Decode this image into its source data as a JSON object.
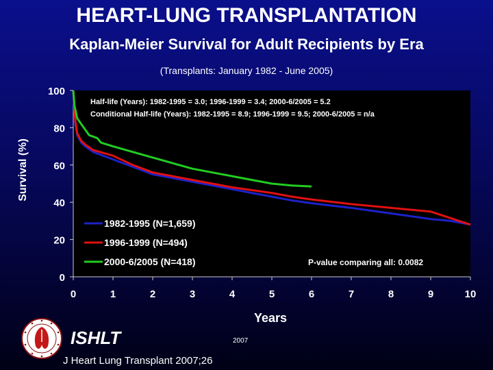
{
  "header": {
    "title": "HEART-LUNG TRANSPLANTATION",
    "subtitle": "Kaplan-Meier Survival for Adult Recipients by Era",
    "note": "(Transplants: January 1982 - June 2005)"
  },
  "footer": {
    "org": "ISHLT",
    "year": "2007",
    "citation": "J Heart Lung Transplant 2007;26"
  },
  "colors": {
    "background": "#06086e",
    "plot_area": "#000000",
    "series_1982_1995": "#1d22c8",
    "series_1996_1999": "#e01010",
    "series_2000_2005": "#22cc22",
    "text": "#ffffff"
  },
  "chart_data": {
    "type": "line",
    "xlabel": "Years",
    "ylabel": "Survival (%)",
    "xlim": [
      0,
      10
    ],
    "ylim": [
      0,
      100
    ],
    "xticks": [
      "0",
      "1",
      "2",
      "3",
      "4",
      "5",
      "6",
      "7",
      "8",
      "9",
      "10"
    ],
    "yticks": [
      "0",
      "20",
      "40",
      "60",
      "80",
      "100"
    ],
    "annotations": [
      "Half-life (Years): 1982-1995 = 3.0; 1996-1999 = 3.4; 2000-6/2005 = 5.2",
      "Conditional Half-life (Years): 1982-1995 = 8.9; 1996-1999 = 9.5; 2000-6/2005 = n/a",
      "P-value comparing all: 0.0082"
    ],
    "legend_position": "bottom-left",
    "series": [
      {
        "name": "1982-1995 (N=1,659)",
        "color": "#1d22c8",
        "x": [
          0,
          0.05,
          0.1,
          0.2,
          0.3,
          0.5,
          1,
          1.5,
          2,
          2.5,
          3,
          3.5,
          4,
          4.5,
          5,
          5.5,
          6,
          7,
          8,
          9,
          9.5,
          10
        ],
        "y": [
          100,
          82,
          76,
          72,
          70,
          67,
          63,
          59,
          55,
          53,
          51,
          49,
          47,
          45,
          43,
          41,
          39.5,
          37,
          34,
          31,
          30,
          28
        ]
      },
      {
        "name": "1996-1999 (N=494)",
        "color": "#e01010",
        "x": [
          0,
          0.05,
          0.1,
          0.2,
          0.3,
          0.5,
          1,
          1.5,
          2,
          2.5,
          3,
          3.5,
          4,
          4.5,
          5,
          5.5,
          6,
          7,
          8,
          8.5,
          9,
          9.5,
          10
        ],
        "y": [
          100,
          84,
          77,
          73,
          71,
          68,
          65,
          60,
          56,
          54,
          52,
          50,
          48,
          46.5,
          45,
          43,
          41.5,
          39,
          37,
          36,
          35,
          31.5,
          28
        ]
      },
      {
        "name": "2000-6/2005 (N=418)",
        "color": "#22cc22",
        "x": [
          0,
          0.03,
          0.1,
          0.2,
          0.3,
          0.4,
          0.6,
          0.7,
          1,
          1.5,
          2,
          2.5,
          3,
          3.5,
          4,
          4.5,
          5,
          5.5,
          6
        ],
        "y": [
          100,
          92,
          85,
          82,
          79,
          76,
          74.5,
          72,
          70,
          67,
          64,
          61,
          58,
          56,
          54,
          52,
          50,
          49,
          48.5
        ]
      }
    ]
  }
}
